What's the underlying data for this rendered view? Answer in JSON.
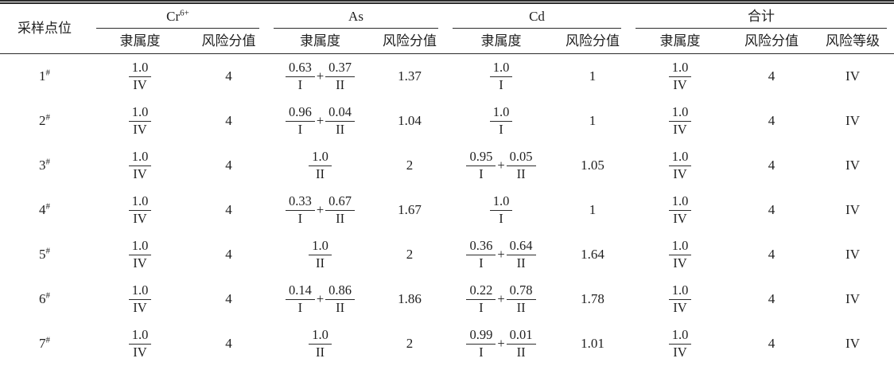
{
  "table": {
    "header": {
      "point_col": "采样点位",
      "groups": [
        {
          "label": "Cr",
          "sup": "6+"
        },
        {
          "label": "As",
          "sup": ""
        },
        {
          "label": "Cd",
          "sup": ""
        },
        {
          "label": "合计",
          "sup": ""
        }
      ],
      "sub": [
        "隶属度",
        "风险分值",
        "隶属度",
        "风险分值",
        "隶属度",
        "风险分值",
        "隶属度",
        "风险分值",
        "风险等级"
      ]
    },
    "rows": [
      {
        "point": "1",
        "point_sup": "#",
        "cells": [
          {
            "terms": [
              {
                "num": "1.0",
                "den": "IV"
              }
            ]
          },
          "4",
          {
            "terms": [
              {
                "num": "0.63",
                "den": "I"
              },
              {
                "num": "0.37",
                "den": "II"
              }
            ]
          },
          "1.37",
          {
            "terms": [
              {
                "num": "1.0",
                "den": "I"
              }
            ]
          },
          "1",
          {
            "terms": [
              {
                "num": "1.0",
                "den": "IV"
              }
            ]
          },
          "4",
          "IV"
        ]
      },
      {
        "point": "2",
        "point_sup": "#",
        "cells": [
          {
            "terms": [
              {
                "num": "1.0",
                "den": "IV"
              }
            ]
          },
          "4",
          {
            "terms": [
              {
                "num": "0.96",
                "den": "I"
              },
              {
                "num": "0.04",
                "den": "II"
              }
            ]
          },
          "1.04",
          {
            "terms": [
              {
                "num": "1.0",
                "den": "I"
              }
            ]
          },
          "1",
          {
            "terms": [
              {
                "num": "1.0",
                "den": "IV"
              }
            ]
          },
          "4",
          "IV"
        ]
      },
      {
        "point": "3",
        "point_sup": "#",
        "cells": [
          {
            "terms": [
              {
                "num": "1.0",
                "den": "IV"
              }
            ]
          },
          "4",
          {
            "terms": [
              {
                "num": "1.0",
                "den": "II"
              }
            ]
          },
          "2",
          {
            "terms": [
              {
                "num": "0.95",
                "den": "I"
              },
              {
                "num": "0.05",
                "den": "II"
              }
            ]
          },
          "1.05",
          {
            "terms": [
              {
                "num": "1.0",
                "den": "IV"
              }
            ]
          },
          "4",
          "IV"
        ]
      },
      {
        "point": "4",
        "point_sup": "#",
        "cells": [
          {
            "terms": [
              {
                "num": "1.0",
                "den": "IV"
              }
            ]
          },
          "4",
          {
            "terms": [
              {
                "num": "0.33",
                "den": "I"
              },
              {
                "num": "0.67",
                "den": "II"
              }
            ]
          },
          "1.67",
          {
            "terms": [
              {
                "num": "1.0",
                "den": "I"
              }
            ]
          },
          "1",
          {
            "terms": [
              {
                "num": "1.0",
                "den": "IV"
              }
            ]
          },
          "4",
          "IV"
        ]
      },
      {
        "point": "5",
        "point_sup": "#",
        "cells": [
          {
            "terms": [
              {
                "num": "1.0",
                "den": "IV"
              }
            ]
          },
          "4",
          {
            "terms": [
              {
                "num": "1.0",
                "den": "II"
              }
            ]
          },
          "2",
          {
            "terms": [
              {
                "num": "0.36",
                "den": "I"
              },
              {
                "num": "0.64",
                "den": "II"
              }
            ]
          },
          "1.64",
          {
            "terms": [
              {
                "num": "1.0",
                "den": "IV"
              }
            ]
          },
          "4",
          "IV"
        ]
      },
      {
        "point": "6",
        "point_sup": "#",
        "cells": [
          {
            "terms": [
              {
                "num": "1.0",
                "den": "IV"
              }
            ]
          },
          "4",
          {
            "terms": [
              {
                "num": "0.14",
                "den": "I"
              },
              {
                "num": "0.86",
                "den": "II"
              }
            ]
          },
          "1.86",
          {
            "terms": [
              {
                "num": "0.22",
                "den": "I"
              },
              {
                "num": "0.78",
                "den": "II"
              }
            ]
          },
          "1.78",
          {
            "terms": [
              {
                "num": "1.0",
                "den": "IV"
              }
            ]
          },
          "4",
          "IV"
        ]
      },
      {
        "point": "7",
        "point_sup": "#",
        "cells": [
          {
            "terms": [
              {
                "num": "1.0",
                "den": "IV"
              }
            ]
          },
          "4",
          {
            "terms": [
              {
                "num": "1.0",
                "den": "II"
              }
            ]
          },
          "2",
          {
            "terms": [
              {
                "num": "0.99",
                "den": "I"
              },
              {
                "num": "0.01",
                "den": "II"
              }
            ]
          },
          "1.01",
          {
            "terms": [
              {
                "num": "1.0",
                "den": "IV"
              }
            ]
          },
          "4",
          "IV"
        ]
      }
    ]
  }
}
